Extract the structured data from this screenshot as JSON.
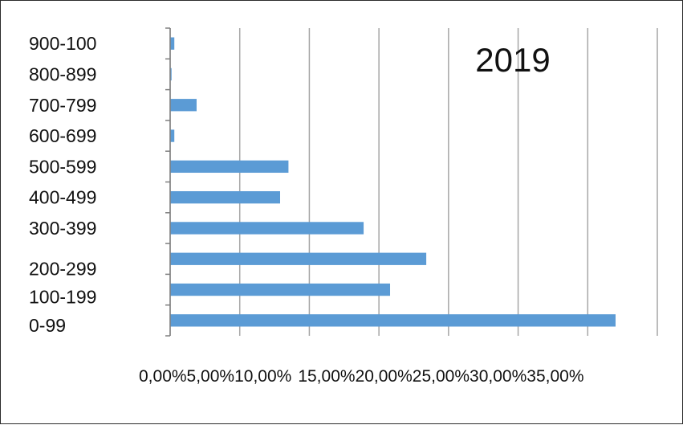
{
  "chart_data": {
    "type": "bar",
    "orientation": "horizontal",
    "title": "2019",
    "categories": [
      "0-99",
      "100-199",
      "200-299",
      "300-399",
      "400-499",
      "500-599",
      "600-699",
      "700-799",
      "800-899",
      "900-100"
    ],
    "values": [
      32.0,
      15.8,
      18.4,
      13.9,
      7.9,
      8.5,
      0.3,
      1.9,
      0.1,
      0.3
    ],
    "x_ticks": [
      "0,00%",
      "5,00%",
      "10,00%",
      "15,00%",
      "20,00%",
      "25,00%",
      "30,00%",
      "35,00%"
    ],
    "xlim": [
      0,
      35
    ],
    "xlabel": "",
    "ylabel": "",
    "grid": "vertical",
    "legend": "none",
    "colors": {
      "bar": "#5B9BD5",
      "grid": "#a6a6a6",
      "axis": "#7f7f7f",
      "text": "#111111"
    }
  }
}
